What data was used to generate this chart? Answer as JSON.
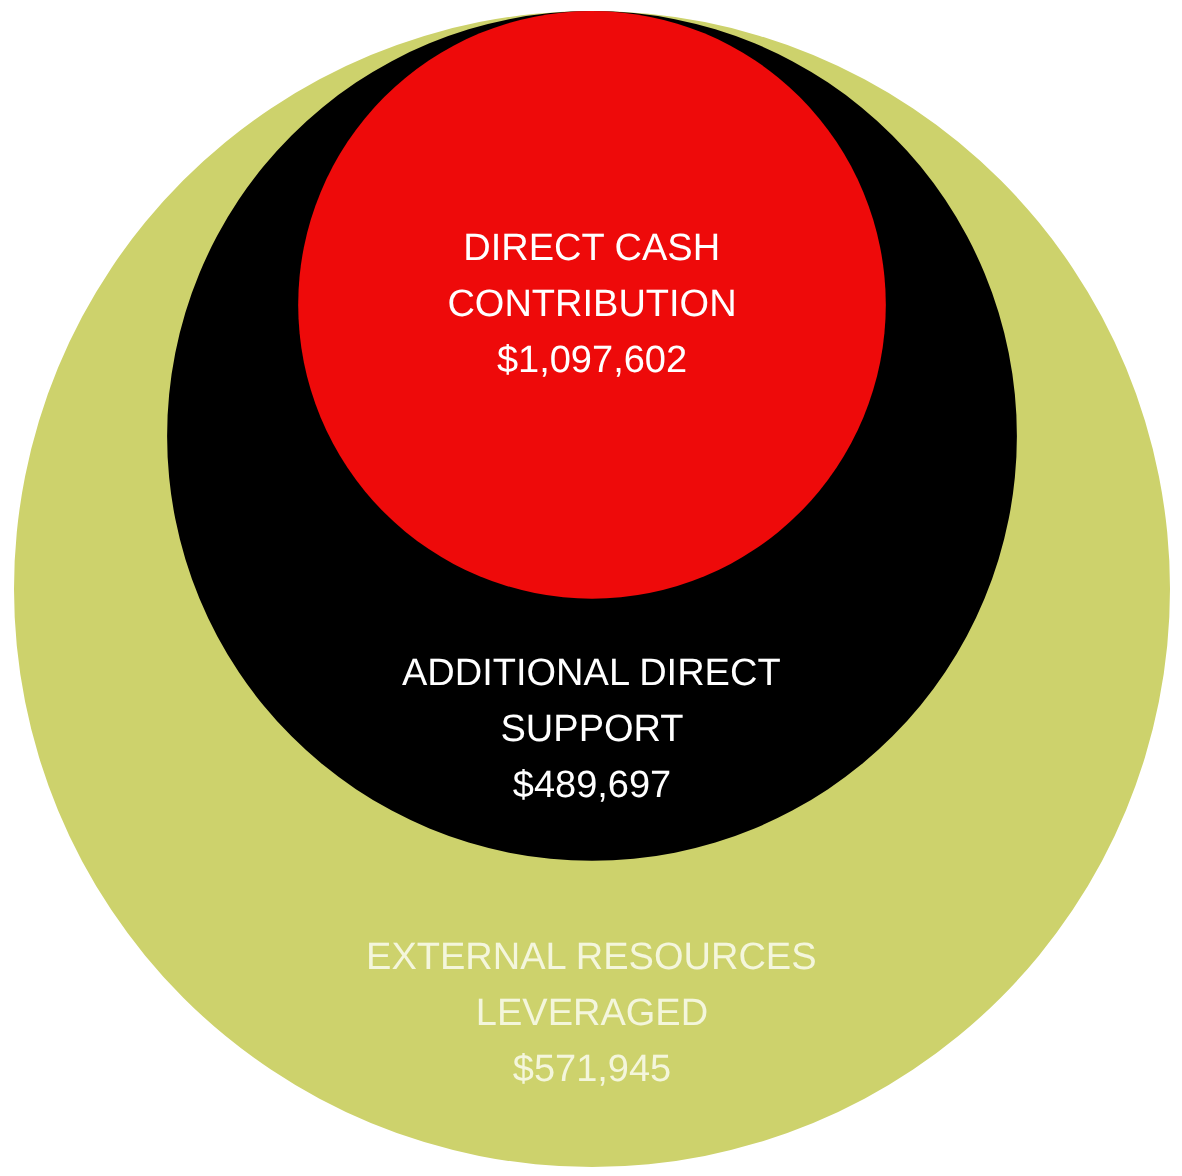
{
  "chart_data": {
    "type": "other",
    "categories": [
      "DIRECT CASH\nCONTRIBUTION",
      "ADDITIONAL DIRECT\nSUPPORT",
      "EXTERNAL RESOURCES\nLEVERAGED"
    ],
    "values": [
      1097602,
      489697,
      571945
    ],
    "value_labels": [
      "$1,097,602",
      "$489,697",
      "$571,945"
    ],
    "colors": [
      "#ee0a0a",
      "#000000",
      "#cdd26c"
    ]
  }
}
